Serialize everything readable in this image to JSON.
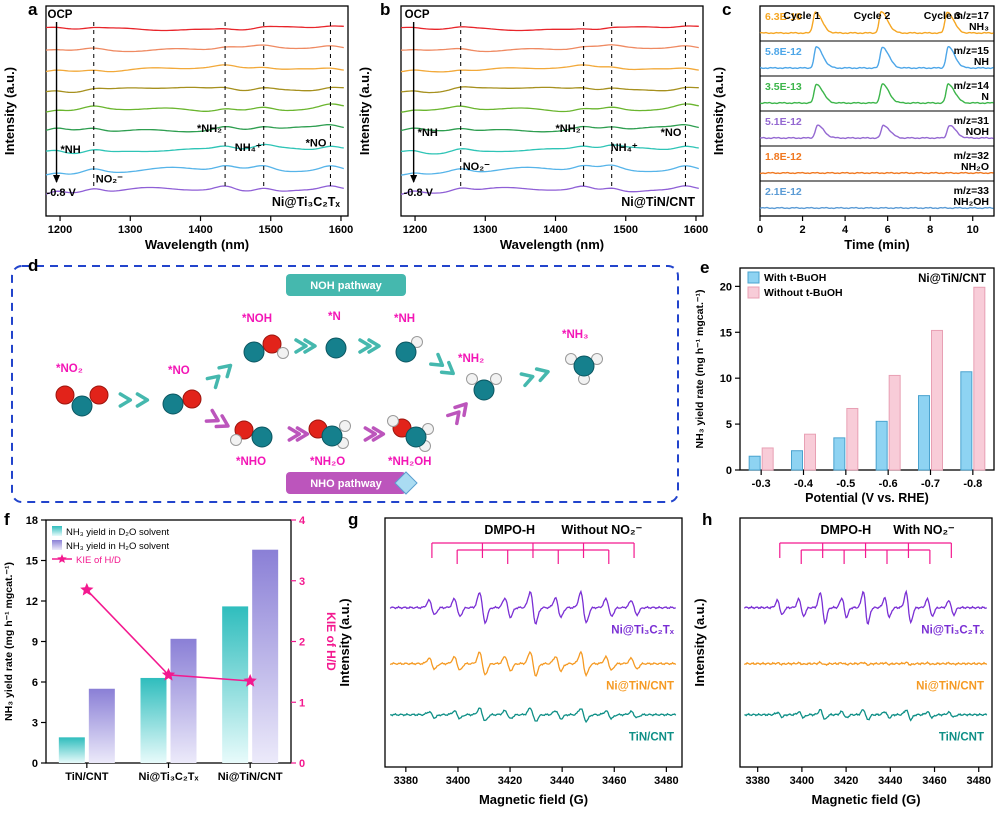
{
  "panels": {
    "a": {
      "label": "a"
    },
    "b": {
      "label": "b"
    },
    "c": {
      "label": "c"
    },
    "d": {
      "label": "d"
    },
    "e": {
      "label": "e"
    },
    "f": {
      "label": "f"
    },
    "g": {
      "label": "g"
    },
    "h": {
      "label": "h"
    }
  },
  "chart_data": [
    {
      "panel": "a",
      "type": "line",
      "kind": "in-situ spectra",
      "xlabel": "Wavelength (nm)",
      "ylabel": "Intensity (a.u.)",
      "xlim": [
        1180,
        1610
      ],
      "xticks": [
        1200,
        1300,
        1400,
        1500,
        1600
      ],
      "n_spectra": 9,
      "colors": [
        "#e8252a",
        "#ef8a62",
        "#f2a93a",
        "#a6901e",
        "#6ab52e",
        "#2e9e50",
        "#2ec4b6",
        "#56b4e9",
        "#8f5fd6"
      ],
      "top_label": "OCP",
      "bottom_label": "-0.8 V",
      "catalyst": "Ni@Ti₃C₂Tₓ",
      "arrow_feature": {
        "x": 1195,
        "label": "*NH",
        "ly": 0.7
      },
      "dashed_features": [
        {
          "x": 1248,
          "label": "NO₂⁻",
          "ly": 0.84,
          "anchor": "start",
          "dx": 2
        },
        {
          "x": 1435,
          "label": "*NH₂",
          "ly": 0.6,
          "anchor": "end",
          "dx": -3
        },
        {
          "x": 1490,
          "label": "NH₄⁺",
          "ly": 0.69,
          "anchor": "end",
          "dx": -2
        },
        {
          "x": 1585,
          "label": "*NO",
          "ly": 0.67,
          "anchor": "end",
          "dx": -4
        }
      ]
    },
    {
      "panel": "b",
      "type": "line",
      "kind": "in-situ spectra",
      "xlabel": "Wavelength (nm)",
      "ylabel": "Intensity (a.u.)",
      "xlim": [
        1180,
        1610
      ],
      "xticks": [
        1200,
        1300,
        1400,
        1500,
        1600
      ],
      "n_spectra": 9,
      "colors": [
        "#e8252a",
        "#ef8a62",
        "#f2a93a",
        "#a6901e",
        "#6ab52e",
        "#2e9e50",
        "#2ec4b6",
        "#56b4e9",
        "#8f5fd6"
      ],
      "top_label": "OCP",
      "bottom_label": "-0.8 V",
      "catalyst": "Ni@TiN/CNT",
      "arrow_feature": {
        "x": 1198,
        "label": "*NH",
        "ly": 0.62
      },
      "dashed_features": [
        {
          "x": 1265,
          "label": "NO₂⁻",
          "ly": 0.78,
          "anchor": "start",
          "dx": 2
        },
        {
          "x": 1440,
          "label": "*NH₂",
          "ly": 0.6,
          "anchor": "end",
          "dx": -3
        },
        {
          "x": 1480,
          "label": "NH₄⁺",
          "ly": 0.69,
          "anchor": "start",
          "dx": -1
        },
        {
          "x": 1585,
          "label": "*NO",
          "ly": 0.62,
          "anchor": "end",
          "dx": -4
        }
      ]
    },
    {
      "panel": "c",
      "type": "line",
      "kind": "DEMS",
      "xlabel": "Time (min)",
      "ylabel": "Intensity (a.u.)",
      "xlim": [
        0,
        11
      ],
      "xticks": [
        0,
        2,
        4,
        6,
        8,
        10
      ],
      "cycles": [
        {
          "label": "Cycle 1",
          "x": 1.1
        },
        {
          "label": "Cycle 2",
          "x": 4.4
        },
        {
          "label": "Cycle 3",
          "x": 7.7
        }
      ],
      "traces": [
        {
          "scale": "6.3E-10",
          "mz": "m/z=17",
          "species": "NH₃",
          "color": "#f5a623",
          "amp": 1.0,
          "peaks": [
            2.6,
            5.7,
            8.8
          ]
        },
        {
          "scale": "5.8E-12",
          "mz": "m/z=15",
          "species": "NH",
          "color": "#4da6e8",
          "amp": 1.0,
          "peaks": [
            2.65,
            5.75,
            8.85
          ]
        },
        {
          "scale": "3.5E-13",
          "mz": "m/z=14",
          "species": "N",
          "color": "#3cb54a",
          "amp": 0.9,
          "peaks": [
            2.65,
            5.75,
            8.85
          ]
        },
        {
          "scale": "5.1E-12",
          "mz": "m/z=31",
          "species": "NOH",
          "color": "#9468d1",
          "amp": 0.6,
          "peaks": [
            2.7,
            5.8,
            8.9
          ]
        },
        {
          "scale": "1.8E-12",
          "mz": "m/z=32",
          "species": "NH₂O",
          "color": "#f07820",
          "amp": 0,
          "peaks": []
        },
        {
          "scale": "2.1E-12",
          "mz": "m/z=33",
          "species": "NH₂OH",
          "color": "#5b9bd5",
          "amp": 0,
          "peaks": []
        }
      ]
    },
    {
      "panel": "d",
      "type": "diagram",
      "kind": "reaction pathway",
      "border_color": "#2244cc",
      "label_color": "#f316b6",
      "pathways": [
        {
          "label": "NOH pathway",
          "color": "#45b8ae"
        },
        {
          "label": "NHO pathway",
          "color": "#bc55bc"
        }
      ],
      "species": [
        "*NO₂",
        "*NO",
        "*NOH",
        "*N",
        "*NH",
        "*NH₂",
        "*NH₃",
        "*NHO",
        "*NH₂O",
        "*NH₂OH"
      ],
      "atom_colors": {
        "N": "#15808d",
        "O": "#e2231a",
        "H": "#f2f2f2"
      }
    },
    {
      "panel": "e",
      "type": "bar",
      "categories": [
        "-0.3",
        "-0.4",
        "-0.5",
        "-0.6",
        "-0.7",
        "-0.8"
      ],
      "series": [
        {
          "name": "With t-BuOH",
          "color": "#8ed3f2",
          "edge": "#4aa3cf",
          "values": [
            1.5,
            2.1,
            3.5,
            5.3,
            8.1,
            10.7
          ]
        },
        {
          "name": "Without t-BuOH",
          "color": "#f8ccd8",
          "edge": "#e8a0b4",
          "values": [
            2.4,
            3.9,
            6.7,
            10.3,
            15.2,
            19.9
          ]
        }
      ],
      "annotation": "Ni@TiN/CNT",
      "xlabel": "Potential (V vs. RHE)",
      "ylabel": "NH₃ yield rate (mg h⁻¹ mgcat.⁻¹)",
      "ylim": [
        0,
        22
      ],
      "yticks": [
        0,
        5,
        10,
        15,
        20
      ]
    },
    {
      "panel": "f",
      "type": "bar-line",
      "categories": [
        "TiN/CNT",
        "Ni@Ti₃C₂Tₓ",
        "Ni@TiN/CNT"
      ],
      "bar_series": [
        {
          "name": "NH₃ yield in D₂O solvent",
          "color_top": "#2fbdbd",
          "color_bottom": "#e8fbfb",
          "values": [
            1.9,
            6.3,
            11.6
          ]
        },
        {
          "name": "NH₃ yield in H₂O solvent",
          "color_top": "#8a7fd6",
          "color_bottom": "#eceafa",
          "values": [
            5.5,
            9.2,
            15.8
          ]
        }
      ],
      "line_series": {
        "name": "KIE of H/D",
        "color": "#f3198f",
        "values": [
          2.85,
          1.45,
          1.35
        ]
      },
      "ylabel_left": "NH₃ yield rate (mg h⁻¹ mgcat.⁻¹)",
      "ylabel_right": "KIE of H/D",
      "ylim_left": [
        0,
        18
      ],
      "yticks_left": [
        0,
        3,
        6,
        9,
        12,
        15,
        18
      ],
      "ylim_right": [
        0,
        4
      ],
      "yticks_right": [
        0,
        1,
        2,
        3,
        4
      ]
    },
    {
      "panel": "g",
      "type": "line",
      "kind": "EPR",
      "title_left": "DMPO-H",
      "title_right": "Without NO₂⁻",
      "xlabel": "Magnetic field (G)",
      "ylabel": "Intensity (a.u.)",
      "xlim": [
        3372,
        3486
      ],
      "xticks": [
        3380,
        3400,
        3420,
        3440,
        3460,
        3480
      ],
      "comb_color": "#f3198f",
      "line_centers_start": 3390,
      "line_spacing": 9.7,
      "traces": [
        {
          "name": "Ni@Ti₃C₂Tₓ",
          "color": "#7a2fd4",
          "amp": 1.0
        },
        {
          "name": "Ni@TiN/CNT",
          "color": "#f59a23",
          "amp": 0.75
        },
        {
          "name": "TiN/CNT",
          "color": "#0e8f86",
          "amp": 0.42
        }
      ]
    },
    {
      "panel": "h",
      "type": "line",
      "kind": "EPR",
      "title_left": "DMPO-H",
      "title_right": "With NO₂⁻",
      "xlabel": "Magnetic field (G)",
      "ylabel": "Intensity (a.u.)",
      "xlim": [
        3372,
        3486
      ],
      "xticks": [
        3380,
        3400,
        3420,
        3440,
        3460,
        3480
      ],
      "comb_color": "#f3198f",
      "line_centers_start": 3390,
      "line_spacing": 9.7,
      "traces": [
        {
          "name": "Ni@Ti₃C₂Tₓ",
          "color": "#7a2fd4",
          "amp": 1.0
        },
        {
          "name": "Ni@TiN/CNT",
          "color": "#f59a23",
          "amp": 0.07
        },
        {
          "name": "TiN/CNT",
          "color": "#0e8f86",
          "amp": 0.32
        }
      ]
    }
  ]
}
